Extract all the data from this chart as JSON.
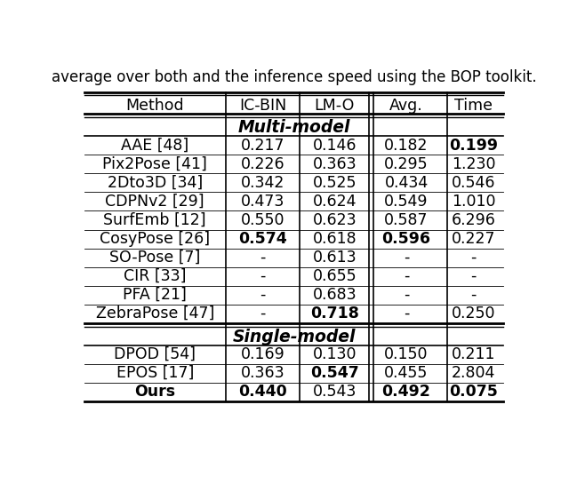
{
  "caption": "average over both and the inference speed using the BOP toolkit.",
  "headers": [
    "Method",
    "IC-BIN",
    "LM-O",
    "Avg.",
    "Time"
  ],
  "section_multimodel": "Multi-model",
  "section_singlemodel": "Single-model",
  "rows_multi": [
    {
      "method": "AAE [48]",
      "icbin": "0.217",
      "lmo": "0.146",
      "avg": "0.182",
      "time": "0.199",
      "bold": [
        false,
        false,
        false,
        false,
        true
      ]
    },
    {
      "method": "Pix2Pose [41]",
      "icbin": "0.226",
      "lmo": "0.363",
      "avg": "0.295",
      "time": "1.230",
      "bold": [
        false,
        false,
        false,
        false,
        false
      ]
    },
    {
      "method": "2Dto3D [34]",
      "icbin": "0.342",
      "lmo": "0.525",
      "avg": "0.434",
      "time": "0.546",
      "bold": [
        false,
        false,
        false,
        false,
        false
      ]
    },
    {
      "method": "CDPNv2 [29]",
      "icbin": "0.473",
      "lmo": "0.624",
      "avg": "0.549",
      "time": "1.010",
      "bold": [
        false,
        false,
        false,
        false,
        false
      ]
    },
    {
      "method": "SurfEmb [12]",
      "icbin": "0.550",
      "lmo": "0.623",
      "avg": "0.587",
      "time": "6.296",
      "bold": [
        false,
        false,
        false,
        false,
        false
      ]
    },
    {
      "method": "CosyPose [26]",
      "icbin": "0.574",
      "lmo": "0.618",
      "avg": "0.596",
      "time": "0.227",
      "bold": [
        false,
        true,
        false,
        true,
        false
      ]
    },
    {
      "method": "SO-Pose [7]",
      "icbin": "-",
      "lmo": "0.613",
      "avg": "-",
      "time": "-",
      "bold": [
        false,
        false,
        false,
        false,
        false
      ]
    },
    {
      "method": "CIR [33]",
      "icbin": "-",
      "lmo": "0.655",
      "avg": "-",
      "time": "-",
      "bold": [
        false,
        false,
        false,
        false,
        false
      ]
    },
    {
      "method": "PFA [21]",
      "icbin": "-",
      "lmo": "0.683",
      "avg": "-",
      "time": "-",
      "bold": [
        false,
        false,
        false,
        false,
        false
      ]
    },
    {
      "method": "ZebraPose [47]",
      "icbin": "-",
      "lmo": "0.718",
      "avg": "-",
      "time": "0.250",
      "bold": [
        false,
        false,
        true,
        false,
        false
      ]
    }
  ],
  "rows_single": [
    {
      "method": "DPOD [54]",
      "icbin": "0.169",
      "lmo": "0.130",
      "avg": "0.150",
      "time": "0.211",
      "bold": [
        false,
        false,
        false,
        false,
        false
      ]
    },
    {
      "method": "EPOS [17]",
      "icbin": "0.363",
      "lmo": "0.547",
      "avg": "0.455",
      "time": "2.804",
      "bold": [
        false,
        false,
        true,
        false,
        false
      ]
    },
    {
      "method": "Ours",
      "icbin": "0.440",
      "lmo": "0.543",
      "avg": "0.492",
      "time": "0.075",
      "bold": [
        true,
        true,
        false,
        true,
        true
      ]
    }
  ],
  "figsize": [
    6.4,
    5.63
  ],
  "dpi": 100,
  "font_size": 12.5,
  "bg_color": "#ffffff",
  "text_color": "#000000"
}
